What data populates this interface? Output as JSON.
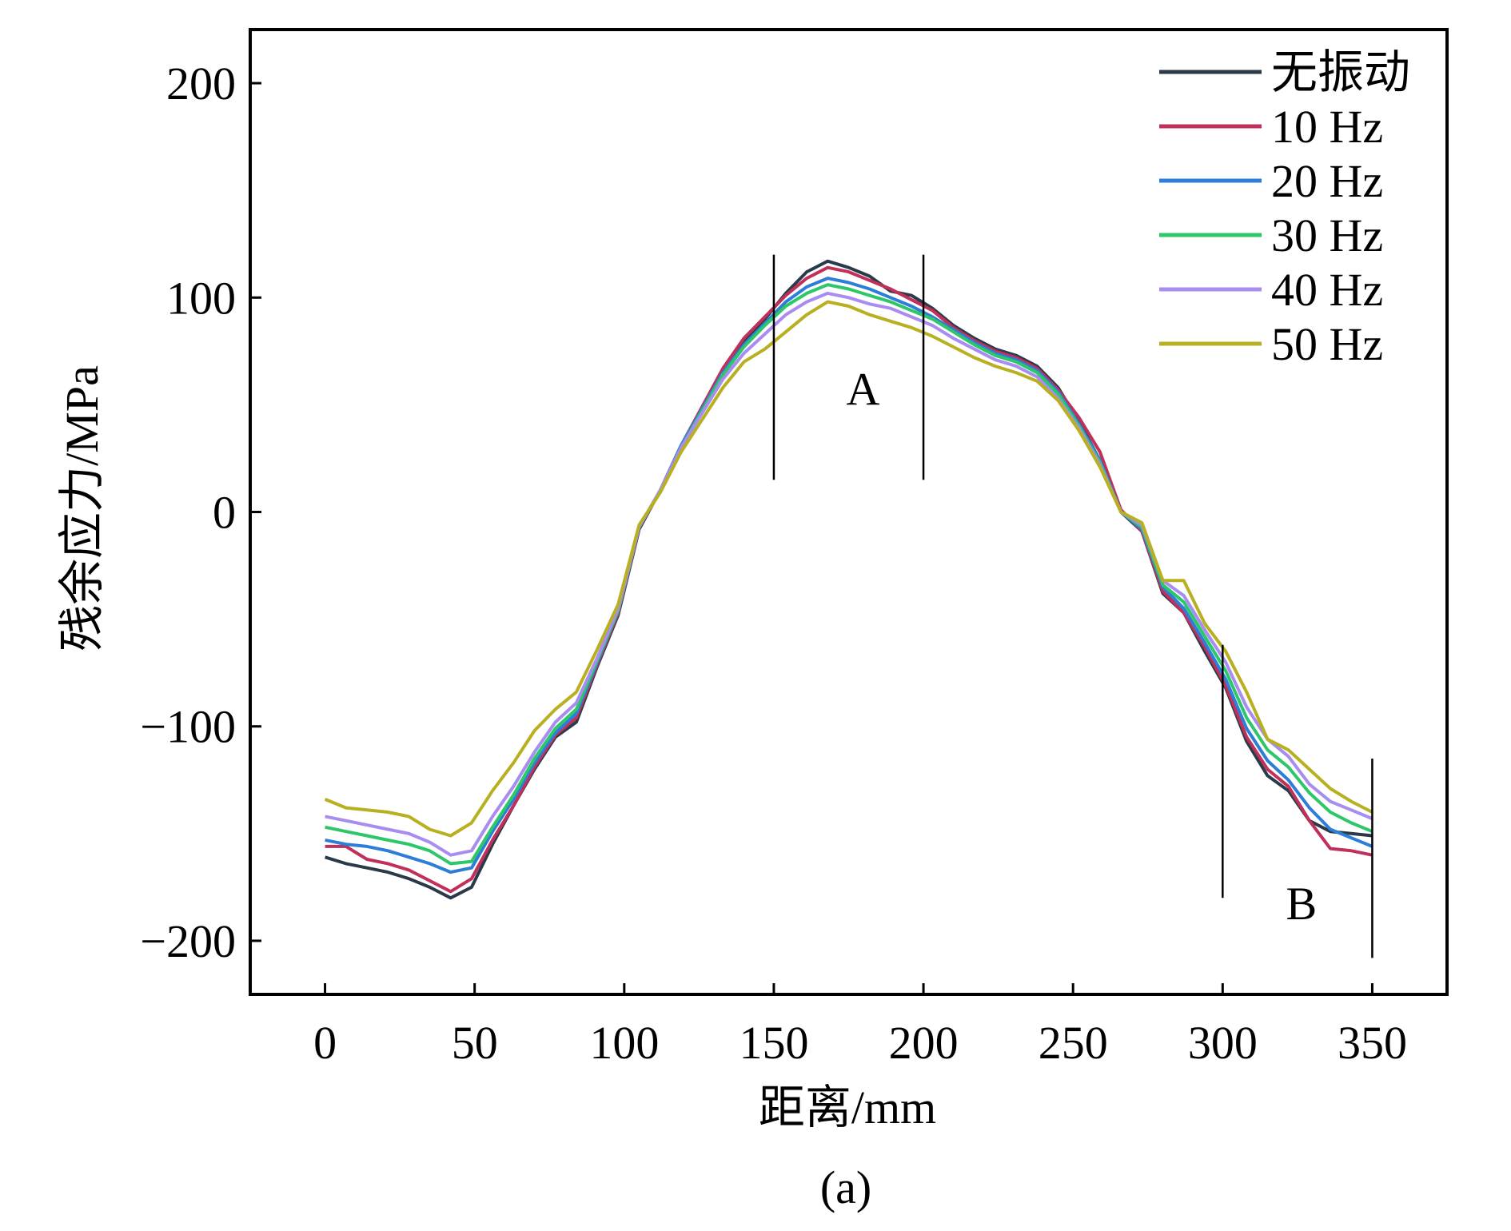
{
  "chart_data": {
    "type": "line",
    "xlabel": "距离/mm",
    "ylabel": "残余应力/MPa",
    "caption": "(a)",
    "xlim": [
      -25,
      375
    ],
    "ylim": [
      -225,
      225
    ],
    "xticks": [
      "0",
      "50",
      "100",
      "150",
      "200",
      "250",
      "300",
      "350"
    ],
    "yticks": [
      "200",
      "100",
      "0",
      "−100",
      "−200"
    ],
    "grid": false,
    "legend_position": "top-right",
    "x": [
      0,
      7,
      14,
      21,
      28,
      35,
      42,
      49,
      56,
      63,
      70,
      77,
      84,
      91,
      98,
      105,
      112,
      119,
      126,
      133,
      140,
      147,
      154,
      161,
      168,
      175,
      182,
      189,
      196,
      203,
      210,
      217,
      224,
      231,
      238,
      245,
      252,
      259,
      266,
      273,
      280,
      287,
      294,
      301,
      308,
      315,
      322,
      329,
      336,
      343,
      350
    ],
    "series": [
      {
        "name": "无振动",
        "color": "#2b3a48",
        "values": [
          -161,
          -164,
          -166,
          -168,
          -171,
          -175,
          -180,
          -175,
          -155,
          -137,
          -120,
          -105,
          -98,
          -72,
          -48,
          -8,
          10,
          30,
          48,
          66,
          80,
          90,
          102,
          112,
          117,
          114,
          110,
          103,
          101,
          95,
          87,
          81,
          76,
          73,
          68,
          58,
          42,
          24,
          0,
          -9,
          -38,
          -47,
          -65,
          -82,
          -107,
          -123,
          -130,
          -144,
          -149,
          -150,
          -151
        ]
      },
      {
        "name": "10 Hz",
        "color": "#c0305a",
        "values": [
          -156,
          -156,
          -162,
          -164,
          -167,
          -172,
          -177,
          -171,
          -153,
          -137,
          -119,
          -104,
          -96,
          -71,
          -47,
          -7,
          10,
          31,
          49,
          67,
          81,
          91,
          101,
          109,
          114,
          112,
          108,
          104,
          99,
          94,
          86,
          80,
          75,
          72,
          67,
          57,
          44,
          28,
          1,
          -9,
          -37,
          -47,
          -63,
          -81,
          -105,
          -120,
          -128,
          -144,
          -157,
          -158,
          -160
        ]
      },
      {
        "name": "20 Hz",
        "color": "#2d7ed8",
        "values": [
          -153,
          -155,
          -156,
          -158,
          -161,
          -164,
          -168,
          -166,
          -149,
          -134,
          -117,
          -103,
          -94,
          -70,
          -46,
          -7,
          10,
          31,
          48,
          65,
          78,
          88,
          98,
          105,
          109,
          107,
          104,
          100,
          96,
          91,
          85,
          79,
          74,
          71,
          66,
          56,
          41,
          24,
          0,
          -8,
          -35,
          -45,
          -61,
          -78,
          -101,
          -116,
          -125,
          -138,
          -148,
          -152,
          -156
        ]
      },
      {
        "name": "30 Hz",
        "color": "#2dc76a",
        "values": [
          -147,
          -149,
          -151,
          -153,
          -155,
          -158,
          -164,
          -163,
          -147,
          -132,
          -115,
          -101,
          -92,
          -69,
          -46,
          -7,
          10,
          30,
          47,
          64,
          77,
          87,
          96,
          102,
          106,
          104,
          101,
          98,
          94,
          90,
          84,
          78,
          73,
          70,
          65,
          55,
          40,
          23,
          0,
          -7,
          -34,
          -42,
          -58,
          -74,
          -96,
          -111,
          -119,
          -131,
          -140,
          -145,
          -149
        ]
      },
      {
        "name": "40 Hz",
        "color": "#a98cf0",
        "values": [
          -142,
          -144,
          -146,
          -148,
          -150,
          -154,
          -160,
          -158,
          -142,
          -128,
          -112,
          -98,
          -89,
          -68,
          -45,
          -7,
          10,
          30,
          46,
          62,
          74,
          83,
          92,
          98,
          102,
          100,
          97,
          95,
          91,
          87,
          81,
          76,
          71,
          68,
          63,
          53,
          39,
          22,
          0,
          -6,
          -32,
          -39,
          -55,
          -70,
          -91,
          -106,
          -114,
          -127,
          -135,
          -139,
          -143
        ]
      },
      {
        "name": "50 Hz",
        "color": "#b8b020",
        "values": [
          -134,
          -138,
          -139,
          -140,
          -142,
          -148,
          -151,
          -145,
          -130,
          -117,
          -102,
          -92,
          -84,
          -64,
          -43,
          -6,
          9,
          28,
          43,
          58,
          70,
          76,
          84,
          92,
          98,
          96,
          92,
          89,
          86,
          82,
          77,
          72,
          68,
          65,
          61,
          52,
          38,
          21,
          0,
          -5,
          -32,
          -32,
          -52,
          -65,
          -84,
          -106,
          -111,
          -120,
          -129,
          -135,
          -140
        ]
      }
    ],
    "annotations": [
      {
        "label": "A",
        "region_x": [
          150,
          200
        ],
        "line_y": [
          15,
          120
        ]
      },
      {
        "label": "B",
        "region_x": [
          300,
          350
        ],
        "line_y_left": [
          -180,
          -62
        ],
        "line_y_right": [
          -208,
          -115
        ]
      }
    ]
  }
}
